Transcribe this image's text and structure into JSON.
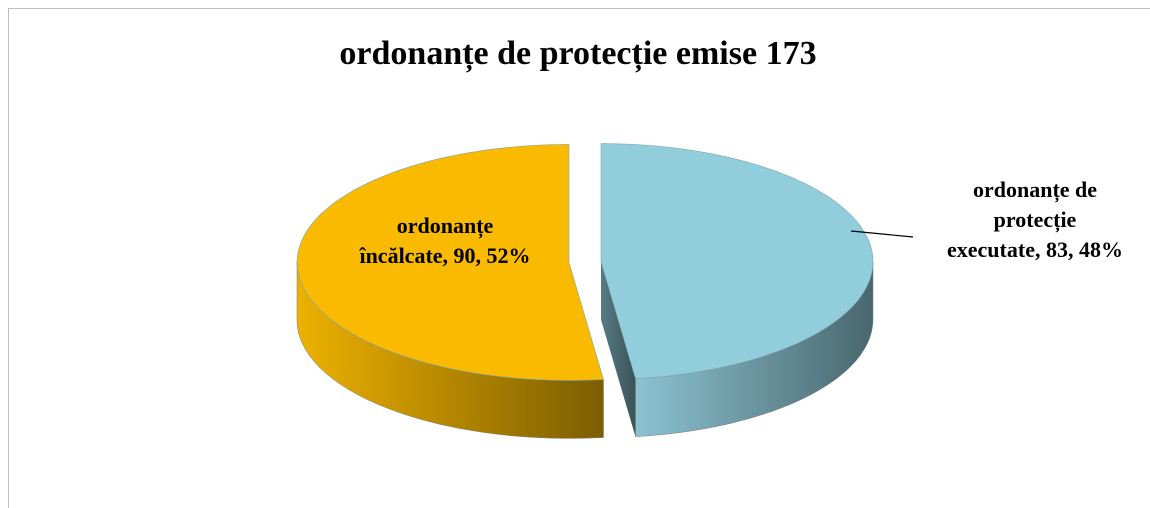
{
  "chart_data": {
    "type": "pie3d",
    "title": "ordonanțe de protecție emise 173",
    "labels": [
      [
        "ordonanțe de",
        "protecție",
        "executate, 83, 48%"
      ],
      [
        "ordonanțe",
        "încălcate, 90, 52%"
      ]
    ],
    "values": [
      83,
      90
    ],
    "colors": [
      "#92CDDC",
      "#F9BA00"
    ]
  }
}
